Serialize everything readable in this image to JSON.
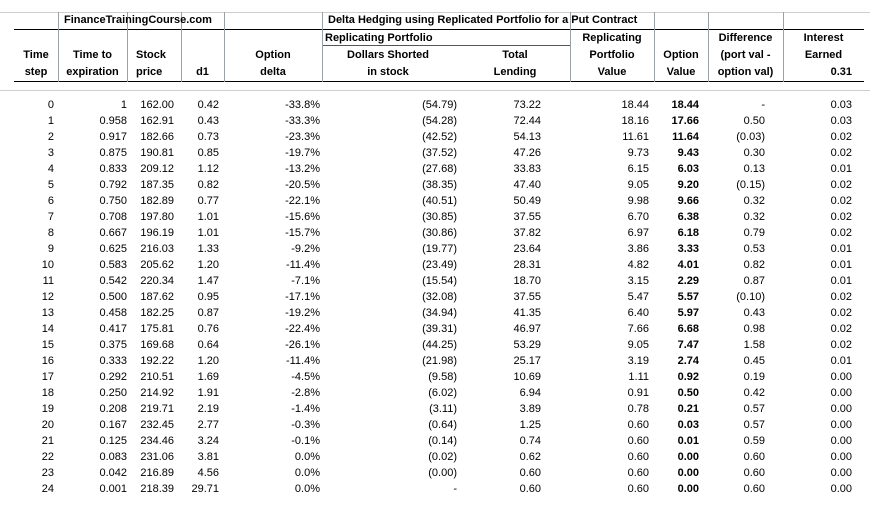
{
  "header": {
    "site": "FinanceTrainingCourse.com",
    "title": "Delta Hedging using Replicated Portfolio for a Put Contract",
    "group_replicating": "Replicating Portfolio",
    "col_time_step": [
      "Time",
      "step"
    ],
    "col_time_to_exp": [
      "Time to",
      "expiration"
    ],
    "col_stock_price": [
      "Stock",
      "price"
    ],
    "col_d1": "d1",
    "col_option_delta": [
      "Option",
      "delta"
    ],
    "col_dollars_shorted": [
      "Dollars Shorted",
      "in stock"
    ],
    "col_total_lending": [
      "Total",
      "Lending"
    ],
    "col_rep_value": [
      "Replicating",
      "Portfolio",
      "Value"
    ],
    "col_option_value": [
      "Option",
      "Value"
    ],
    "col_difference": [
      "Difference",
      "(port val -",
      "option val)"
    ],
    "col_interest": [
      "Interest",
      "Earned"
    ],
    "interest_rate": "0.31"
  },
  "rows": [
    [
      "0",
      "1",
      "162.00",
      "0.42",
      "-33.8%",
      "(54.79)",
      "73.22",
      "18.44",
      "18.44",
      "-",
      "0.03"
    ],
    [
      "1",
      "0.958",
      "162.91",
      "0.43",
      "-33.3%",
      "(54.28)",
      "72.44",
      "18.16",
      "17.66",
      "0.50",
      "0.03"
    ],
    [
      "2",
      "0.917",
      "182.66",
      "0.73",
      "-23.3%",
      "(42.52)",
      "54.13",
      "11.61",
      "11.64",
      "(0.03)",
      "0.02"
    ],
    [
      "3",
      "0.875",
      "190.81",
      "0.85",
      "-19.7%",
      "(37.52)",
      "47.26",
      "9.73",
      "9.43",
      "0.30",
      "0.02"
    ],
    [
      "4",
      "0.833",
      "209.12",
      "1.12",
      "-13.2%",
      "(27.68)",
      "33.83",
      "6.15",
      "6.03",
      "0.13",
      "0.01"
    ],
    [
      "5",
      "0.792",
      "187.35",
      "0.82",
      "-20.5%",
      "(38.35)",
      "47.40",
      "9.05",
      "9.20",
      "(0.15)",
      "0.02"
    ],
    [
      "6",
      "0.750",
      "182.89",
      "0.77",
      "-22.1%",
      "(40.51)",
      "50.49",
      "9.98",
      "9.66",
      "0.32",
      "0.02"
    ],
    [
      "7",
      "0.708",
      "197.80",
      "1.01",
      "-15.6%",
      "(30.85)",
      "37.55",
      "6.70",
      "6.38",
      "0.32",
      "0.02"
    ],
    [
      "8",
      "0.667",
      "196.19",
      "1.01",
      "-15.7%",
      "(30.86)",
      "37.82",
      "6.97",
      "6.18",
      "0.79",
      "0.02"
    ],
    [
      "9",
      "0.625",
      "216.03",
      "1.33",
      "-9.2%",
      "(19.77)",
      "23.64",
      "3.86",
      "3.33",
      "0.53",
      "0.01"
    ],
    [
      "10",
      "0.583",
      "205.62",
      "1.20",
      "-11.4%",
      "(23.49)",
      "28.31",
      "4.82",
      "4.01",
      "0.82",
      "0.01"
    ],
    [
      "11",
      "0.542",
      "220.34",
      "1.47",
      "-7.1%",
      "(15.54)",
      "18.70",
      "3.15",
      "2.29",
      "0.87",
      "0.01"
    ],
    [
      "12",
      "0.500",
      "187.62",
      "0.95",
      "-17.1%",
      "(32.08)",
      "37.55",
      "5.47",
      "5.57",
      "(0.10)",
      "0.02"
    ],
    [
      "13",
      "0.458",
      "182.25",
      "0.87",
      "-19.2%",
      "(34.94)",
      "41.35",
      "6.40",
      "5.97",
      "0.43",
      "0.02"
    ],
    [
      "14",
      "0.417",
      "175.81",
      "0.76",
      "-22.4%",
      "(39.31)",
      "46.97",
      "7.66",
      "6.68",
      "0.98",
      "0.02"
    ],
    [
      "15",
      "0.375",
      "169.68",
      "0.64",
      "-26.1%",
      "(44.25)",
      "53.29",
      "9.05",
      "7.47",
      "1.58",
      "0.02"
    ],
    [
      "16",
      "0.333",
      "192.22",
      "1.20",
      "-11.4%",
      "(21.98)",
      "25.17",
      "3.19",
      "2.74",
      "0.45",
      "0.01"
    ],
    [
      "17",
      "0.292",
      "210.51",
      "1.69",
      "-4.5%",
      "(9.58)",
      "10.69",
      "1.11",
      "0.92",
      "0.19",
      "0.00"
    ],
    [
      "18",
      "0.250",
      "214.92",
      "1.91",
      "-2.8%",
      "(6.02)",
      "6.94",
      "0.91",
      "0.50",
      "0.42",
      "0.00"
    ],
    [
      "19",
      "0.208",
      "219.71",
      "2.19",
      "-1.4%",
      "(3.11)",
      "3.89",
      "0.78",
      "0.21",
      "0.57",
      "0.00"
    ],
    [
      "20",
      "0.167",
      "232.45",
      "2.77",
      "-0.3%",
      "(0.64)",
      "1.25",
      "0.60",
      "0.03",
      "0.57",
      "0.00"
    ],
    [
      "21",
      "0.125",
      "234.46",
      "3.24",
      "-0.1%",
      "(0.14)",
      "0.74",
      "0.60",
      "0.01",
      "0.59",
      "0.00"
    ],
    [
      "22",
      "0.083",
      "231.06",
      "3.81",
      "0.0%",
      "(0.02)",
      "0.62",
      "0.60",
      "0.00",
      "0.60",
      "0.00"
    ],
    [
      "23",
      "0.042",
      "216.89",
      "4.56",
      "0.0%",
      "(0.00)",
      "0.60",
      "0.60",
      "0.00",
      "0.60",
      "0.00"
    ],
    [
      "24",
      "0.001",
      "218.39",
      "29.71",
      "0.0%",
      "-",
      "0.60",
      "0.60",
      "0.00",
      "0.60",
      "0.00"
    ]
  ]
}
